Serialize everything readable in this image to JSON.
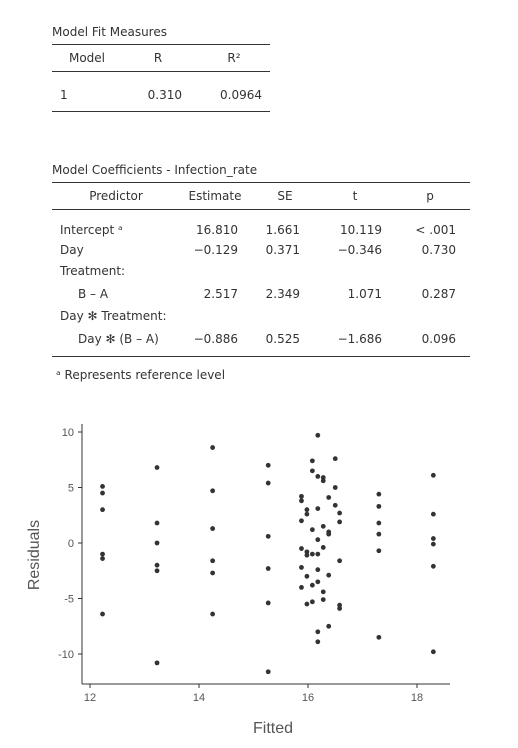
{
  "fit_table": {
    "title": "Model Fit Measures",
    "headers": [
      "Model",
      "R",
      "R²"
    ],
    "row": [
      "1",
      "0.310",
      "0.0964"
    ]
  },
  "coef_table": {
    "title": "Model Coefficients - Infection_rate",
    "headers": [
      "Predictor",
      "Estimate",
      "SE",
      "t",
      "p"
    ],
    "rows": [
      {
        "predictor": "Intercept ᵃ",
        "estimate": "16.810",
        "se": "1.661",
        "t": "10.119",
        "p": "< .001"
      },
      {
        "predictor": "Day",
        "estimate": "−0.129",
        "se": "0.371",
        "t": "−0.346",
        "p": "0.730"
      },
      {
        "predictor": "Treatment:",
        "estimate": "",
        "se": "",
        "t": "",
        "p": ""
      },
      {
        "predictor": "B – A",
        "estimate": "2.517",
        "se": "2.349",
        "t": "1.071",
        "p": "0.287"
      },
      {
        "predictor": "Day ✻ Treatment:",
        "estimate": "",
        "se": "",
        "t": "",
        "p": ""
      },
      {
        "predictor": "Day ✻ (B – A)",
        "estimate": "−0.886",
        "se": "0.525",
        "t": "−1.686",
        "p": "0.096"
      }
    ],
    "footnote": "ᵃ Represents reference level"
  },
  "chart_data": {
    "type": "scatter",
    "title": "",
    "xlabel": "Fitted",
    "ylabel": "Residuals",
    "xlim": [
      12,
      19
    ],
    "ylim": [
      -12.5,
      11
    ],
    "xticks": [
      "12",
      "14",
      "16",
      "18"
    ],
    "yticks": [
      "10",
      "5",
      "0",
      "-5",
      "-10"
    ],
    "grid": false,
    "point_color": "#333333",
    "points": [
      {
        "x": 12.23,
        "y": 5.1
      },
      {
        "x": 12.23,
        "y": 4.5
      },
      {
        "x": 12.23,
        "y": 3.0
      },
      {
        "x": 12.23,
        "y": -1.0
      },
      {
        "x": 12.23,
        "y": -1.4
      },
      {
        "x": 12.23,
        "y": -6.4
      },
      {
        "x": 13.23,
        "y": 6.8
      },
      {
        "x": 13.23,
        "y": 1.8
      },
      {
        "x": 13.23,
        "y": 0.0
      },
      {
        "x": 13.23,
        "y": -2.0
      },
      {
        "x": 13.23,
        "y": -2.5
      },
      {
        "x": 13.23,
        "y": -10.8
      },
      {
        "x": 14.25,
        "y": 8.6
      },
      {
        "x": 14.25,
        "y": 4.7
      },
      {
        "x": 14.25,
        "y": 1.3
      },
      {
        "x": 14.25,
        "y": -1.6
      },
      {
        "x": 14.25,
        "y": -2.7
      },
      {
        "x": 14.25,
        "y": -6.4
      },
      {
        "x": 15.27,
        "y": 7.0
      },
      {
        "x": 15.27,
        "y": 5.4
      },
      {
        "x": 15.27,
        "y": 0.6
      },
      {
        "x": 15.27,
        "y": -2.3
      },
      {
        "x": 15.27,
        "y": -5.4
      },
      {
        "x": 15.27,
        "y": -11.6
      },
      {
        "x": 15.88,
        "y": 4.2
      },
      {
        "x": 15.88,
        "y": 3.8
      },
      {
        "x": 15.88,
        "y": 2.0
      },
      {
        "x": 15.88,
        "y": -0.5
      },
      {
        "x": 15.88,
        "y": -2.2
      },
      {
        "x": 15.88,
        "y": -4.0
      },
      {
        "x": 15.98,
        "y": 3.0
      },
      {
        "x": 15.98,
        "y": 2.6
      },
      {
        "x": 15.98,
        "y": -0.8
      },
      {
        "x": 15.98,
        "y": -1.1
      },
      {
        "x": 15.98,
        "y": -3.0
      },
      {
        "x": 15.98,
        "y": -5.5
      },
      {
        "x": 16.08,
        "y": 7.4
      },
      {
        "x": 16.08,
        "y": 6.5
      },
      {
        "x": 16.08,
        "y": 1.2
      },
      {
        "x": 16.08,
        "y": -1.0
      },
      {
        "x": 16.08,
        "y": -3.8
      },
      {
        "x": 16.08,
        "y": -5.3
      },
      {
        "x": 16.18,
        "y": 9.7
      },
      {
        "x": 16.18,
        "y": 6.0
      },
      {
        "x": 16.18,
        "y": 3.1
      },
      {
        "x": 16.18,
        "y": 0.3
      },
      {
        "x": 16.18,
        "y": -1.0
      },
      {
        "x": 16.18,
        "y": -2.4
      },
      {
        "x": 16.18,
        "y": -3.5
      },
      {
        "x": 16.18,
        "y": -8.0
      },
      {
        "x": 16.18,
        "y": -8.9
      },
      {
        "x": 16.28,
        "y": 5.9
      },
      {
        "x": 16.28,
        "y": 5.6
      },
      {
        "x": 16.28,
        "y": 1.5
      },
      {
        "x": 16.28,
        "y": -0.4
      },
      {
        "x": 16.28,
        "y": -4.4
      },
      {
        "x": 16.28,
        "y": -5.1
      },
      {
        "x": 16.38,
        "y": 4.1
      },
      {
        "x": 16.38,
        "y": 1.0
      },
      {
        "x": 16.38,
        "y": 0.8
      },
      {
        "x": 16.38,
        "y": -2.9
      },
      {
        "x": 16.38,
        "y": -7.5
      },
      {
        "x": 16.5,
        "y": 7.6
      },
      {
        "x": 16.5,
        "y": 5.0
      },
      {
        "x": 16.5,
        "y": 3.4
      },
      {
        "x": 16.58,
        "y": 2.7
      },
      {
        "x": 16.58,
        "y": 1.9
      },
      {
        "x": 16.58,
        "y": -1.6
      },
      {
        "x": 16.58,
        "y": -5.6
      },
      {
        "x": 16.58,
        "y": -5.9
      },
      {
        "x": 17.3,
        "y": 4.4
      },
      {
        "x": 17.3,
        "y": 3.3
      },
      {
        "x": 17.3,
        "y": 1.8
      },
      {
        "x": 17.3,
        "y": 0.8
      },
      {
        "x": 17.3,
        "y": -0.7
      },
      {
        "x": 17.3,
        "y": -8.5
      },
      {
        "x": 18.3,
        "y": 6.1
      },
      {
        "x": 18.3,
        "y": 2.6
      },
      {
        "x": 18.3,
        "y": 0.4
      },
      {
        "x": 18.3,
        "y": -0.1
      },
      {
        "x": 18.3,
        "y": -2.1
      },
      {
        "x": 18.3,
        "y": -9.8
      }
    ]
  }
}
